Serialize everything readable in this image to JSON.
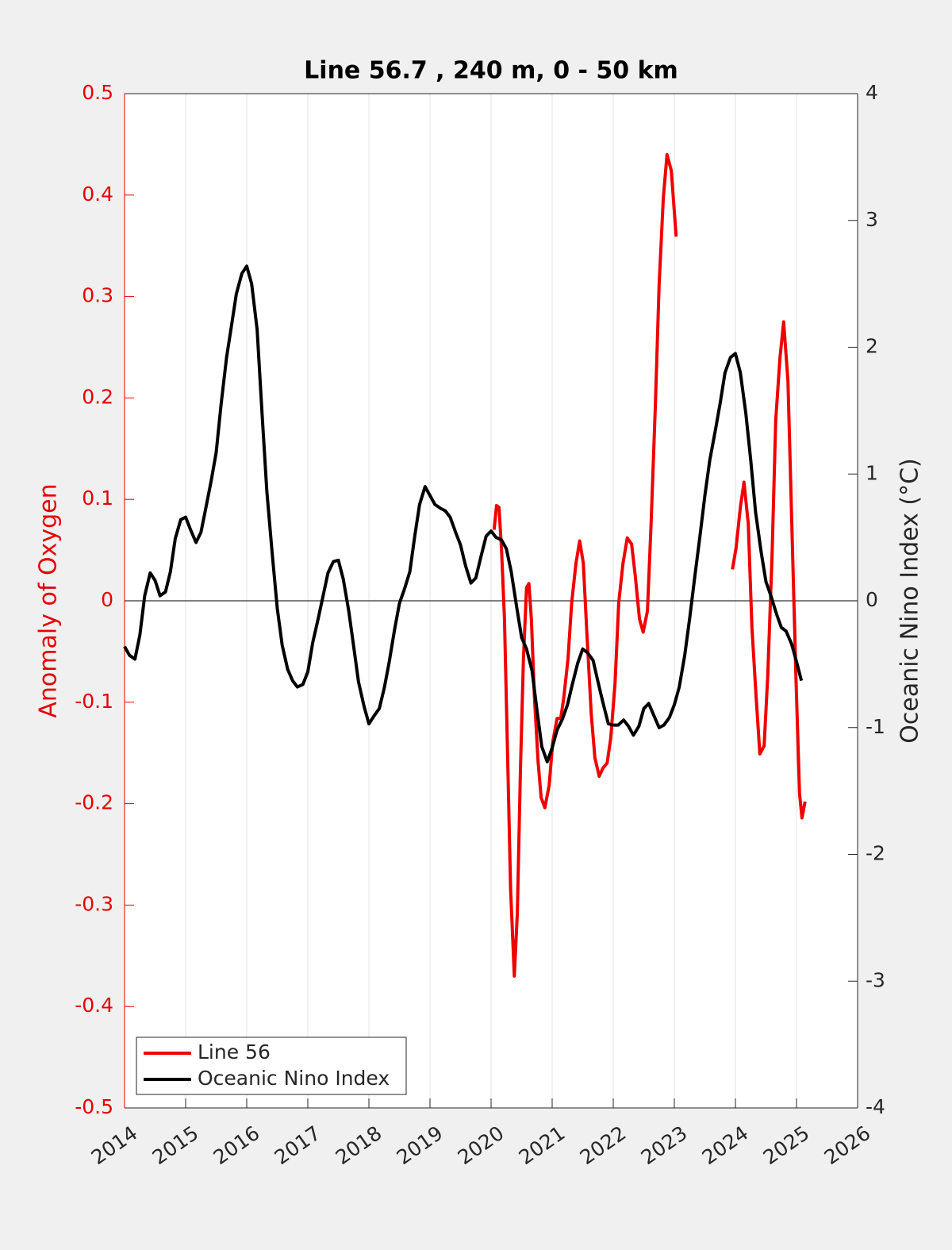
{
  "chart_data": {
    "type": "line",
    "title": "Line 56.7 , 240 m, 0 - 50 km",
    "ylabel": "Anomaly of Oxygen",
    "y2label": "Oceanic Nino Index (°C)",
    "xlim": [
      2014,
      2026
    ],
    "xticks": [
      2014,
      2015,
      2016,
      2017,
      2018,
      2019,
      2020,
      2021,
      2022,
      2023,
      2024,
      2025,
      2026
    ],
    "ylim": [
      -0.5,
      0.5
    ],
    "yticks": [
      -0.5,
      -0.4,
      -0.3,
      -0.2,
      -0.1,
      0,
      0.1,
      0.2,
      0.3,
      0.4,
      0.5
    ],
    "y2lim": [
      -4,
      4
    ],
    "y2ticks": [
      -4,
      -3,
      -2,
      -1,
      0,
      1,
      2,
      3,
      4
    ],
    "grid": "x",
    "zero_line": true,
    "legend": "lower left",
    "ycolor": "#e60000",
    "series": [
      {
        "name": "Line 56",
        "color": "#f00000",
        "axis": "y",
        "x": [
          2020.05,
          2020.09,
          2020.13,
          2020.17,
          2020.22,
          2020.27,
          2020.32,
          2020.38,
          2020.43,
          2020.48,
          2020.53,
          2020.58,
          2020.62,
          2020.66,
          2020.71,
          2020.77,
          2020.82,
          2020.88,
          2020.95,
          2021.01,
          2021.08,
          2021.14,
          2021.19,
          2021.26,
          2021.32,
          2021.39,
          2021.45,
          2021.51,
          2021.57,
          2021.64,
          2021.7,
          2021.77,
          2021.83,
          2021.9,
          2021.96,
          2022.03,
          2022.09,
          2022.16,
          2022.23,
          2022.3,
          2022.36,
          2022.43,
          2022.49,
          2022.56,
          2022.62,
          2022.69,
          2022.75,
          2022.82,
          2022.88,
          2022.95,
          2023.03,
          2023.5,
          2023.95,
          2024.01,
          2024.08,
          2024.14,
          2024.21,
          2024.27,
          2024.34,
          2024.4,
          2024.47,
          2024.53,
          2024.6,
          2024.66,
          2024.73,
          2024.79,
          2024.86,
          2024.92,
          2024.99,
          2025.05,
          2025.09,
          2025.14
        ],
        "values": [
          0.07,
          0.094,
          0.092,
          0.052,
          -0.018,
          -0.151,
          -0.284,
          -0.37,
          -0.308,
          -0.167,
          -0.057,
          0.013,
          0.017,
          -0.018,
          -0.096,
          -0.159,
          -0.194,
          -0.204,
          -0.182,
          -0.139,
          -0.116,
          -0.116,
          -0.096,
          -0.057,
          -0.002,
          0.037,
          0.059,
          0.037,
          -0.034,
          -0.112,
          -0.155,
          -0.173,
          -0.165,
          -0.16,
          -0.135,
          -0.081,
          -0.002,
          0.037,
          0.062,
          0.056,
          0.025,
          -0.018,
          -0.031,
          -0.01,
          0.076,
          0.193,
          0.311,
          0.397,
          0.44,
          0.424,
          0.359,
          null,
          0.031,
          0.052,
          0.092,
          0.117,
          0.076,
          -0.026,
          -0.096,
          -0.151,
          -0.143,
          -0.073,
          0.045,
          0.178,
          0.24,
          0.275,
          0.217,
          0.084,
          -0.073,
          -0.19,
          -0.214,
          -0.198
        ]
      },
      {
        "name": "Oceanic Nino Index",
        "color": "#000000",
        "axis": "y2",
        "x": [
          2014.0,
          2014.08,
          2014.17,
          2014.25,
          2014.33,
          2014.42,
          2014.5,
          2014.58,
          2014.67,
          2014.75,
          2014.83,
          2014.92,
          2015.0,
          2015.08,
          2015.17,
          2015.25,
          2015.33,
          2015.42,
          2015.5,
          2015.58,
          2015.67,
          2015.75,
          2015.83,
          2015.92,
          2016.0,
          2016.08,
          2016.17,
          2016.25,
          2016.33,
          2016.42,
          2016.5,
          2016.58,
          2016.67,
          2016.75,
          2016.83,
          2016.92,
          2017.0,
          2017.08,
          2017.17,
          2017.25,
          2017.33,
          2017.42,
          2017.5,
          2017.58,
          2017.67,
          2017.75,
          2017.83,
          2017.92,
          2018.0,
          2018.08,
          2018.17,
          2018.25,
          2018.33,
          2018.42,
          2018.5,
          2018.58,
          2018.67,
          2018.75,
          2018.83,
          2018.92,
          2019.0,
          2019.08,
          2019.17,
          2019.25,
          2019.33,
          2019.42,
          2019.5,
          2019.58,
          2019.67,
          2019.75,
          2019.83,
          2019.92,
          2020.0,
          2020.08,
          2020.17,
          2020.25,
          2020.33,
          2020.42,
          2020.5,
          2020.58,
          2020.67,
          2020.75,
          2020.83,
          2020.92,
          2021.0,
          2021.08,
          2021.17,
          2021.25,
          2021.33,
          2021.42,
          2021.5,
          2021.58,
          2021.67,
          2021.75,
          2021.83,
          2021.92,
          2022.0,
          2022.08,
          2022.17,
          2022.25,
          2022.33,
          2022.42,
          2022.5,
          2022.58,
          2022.67,
          2022.75,
          2022.83,
          2022.92,
          2023.0,
          2023.08,
          2023.17,
          2023.25,
          2023.33,
          2023.42,
          2023.5,
          2023.58,
          2023.67,
          2023.75,
          2023.83,
          2023.92,
          2024.0,
          2024.08,
          2024.17,
          2024.25,
          2024.33,
          2024.42,
          2024.5,
          2024.58,
          2024.67,
          2024.75,
          2024.83,
          2024.92,
          2025.0,
          2025.08
        ],
        "values": [
          -0.36,
          -0.43,
          -0.46,
          -0.27,
          0.04,
          0.22,
          0.16,
          0.04,
          0.07,
          0.23,
          0.49,
          0.64,
          0.66,
          0.56,
          0.46,
          0.54,
          0.73,
          0.95,
          1.17,
          1.55,
          1.92,
          2.17,
          2.42,
          2.58,
          2.64,
          2.5,
          2.14,
          1.48,
          0.86,
          0.36,
          -0.06,
          -0.35,
          -0.54,
          -0.63,
          -0.68,
          -0.66,
          -0.56,
          -0.33,
          -0.14,
          0.04,
          0.22,
          0.31,
          0.32,
          0.17,
          -0.08,
          -0.36,
          -0.64,
          -0.83,
          -0.97,
          -0.91,
          -0.85,
          -0.69,
          -0.49,
          -0.23,
          -0.02,
          0.09,
          0.23,
          0.51,
          0.76,
          0.9,
          0.83,
          0.76,
          0.73,
          0.71,
          0.66,
          0.54,
          0.44,
          0.28,
          0.14,
          0.18,
          0.34,
          0.51,
          0.55,
          0.5,
          0.48,
          0.41,
          0.23,
          -0.05,
          -0.29,
          -0.38,
          -0.55,
          -0.86,
          -1.15,
          -1.27,
          -1.16,
          -1.02,
          -0.93,
          -0.82,
          -0.66,
          -0.49,
          -0.38,
          -0.41,
          -0.47,
          -0.64,
          -0.8,
          -0.97,
          -0.98,
          -0.98,
          -0.94,
          -0.99,
          -1.06,
          -0.99,
          -0.85,
          -0.81,
          -0.91,
          -1.0,
          -0.98,
          -0.92,
          -0.82,
          -0.68,
          -0.43,
          -0.14,
          0.17,
          0.51,
          0.83,
          1.11,
          1.34,
          1.56,
          1.8,
          1.92,
          1.95,
          1.8,
          1.48,
          1.11,
          0.7,
          0.39,
          0.15,
          0.04,
          -0.1,
          -0.21,
          -0.24,
          -0.34,
          -0.48,
          -0.63
        ]
      }
    ]
  }
}
